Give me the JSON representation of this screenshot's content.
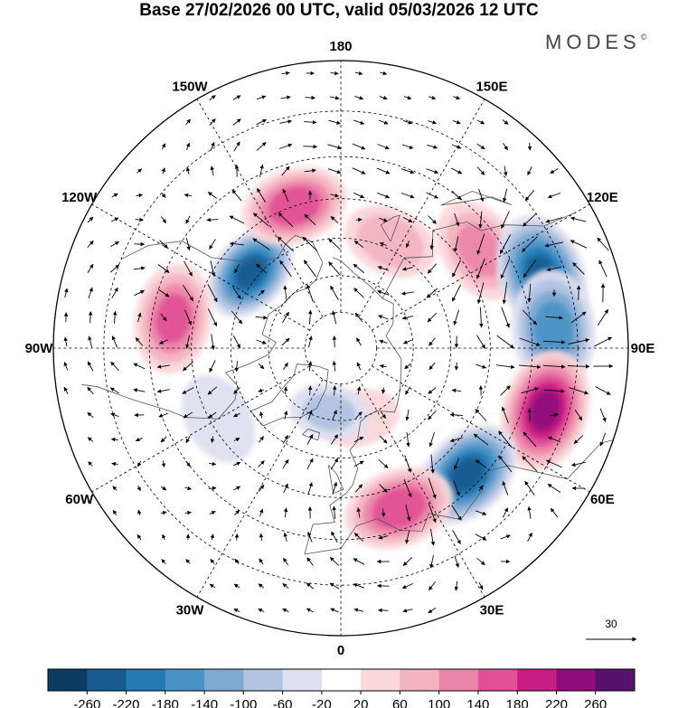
{
  "header": {
    "title": "Base 27/02/2026 00 UTC, valid 05/03/2026 12 UTC",
    "brand": "MODES",
    "brand_mark": "©"
  },
  "chart_data": {
    "type": "heatmap",
    "projection": "north-polar-stereographic",
    "title": "Base 27/02/2026 00 UTC, valid 05/03/2026 12 UTC",
    "longitude_labels": [
      {
        "lon": 180,
        "text": "180"
      },
      {
        "lon": 150,
        "text": "150E"
      },
      {
        "lon": 120,
        "text": "120E"
      },
      {
        "lon": 90,
        "text": "90E"
      },
      {
        "lon": 60,
        "text": "60E"
      },
      {
        "lon": 30,
        "text": "30E"
      },
      {
        "lon": 0,
        "text": "0"
      },
      {
        "lon": -30,
        "text": "30W"
      },
      {
        "lon": -60,
        "text": "60W"
      },
      {
        "lon": -90,
        "text": "90W"
      },
      {
        "lon": -120,
        "text": "120W"
      },
      {
        "lon": -150,
        "text": "150W"
      }
    ],
    "latitude_circles": [
      80,
      70,
      60,
      50,
      40,
      30
    ],
    "colorbar": {
      "ticks": [
        "-260",
        "-220",
        "-180",
        "-140",
        "-100",
        "-60",
        "-20",
        "20",
        "60",
        "100",
        "140",
        "180",
        "220",
        "260"
      ],
      "colors": [
        "#0d3c63",
        "#155b90",
        "#2579b3",
        "#4b93c6",
        "#7fa9d3",
        "#b0c3e0",
        "#dedff0",
        "#ffffff",
        "#fad7d9",
        "#f3b4c0",
        "#ec86aa",
        "#e05196",
        "#c81d84",
        "#8e0d7a",
        "#55116c"
      ]
    },
    "anomaly_centers": [
      {
        "lon": -130,
        "lat": 58,
        "value": -250
      },
      {
        "lon": -162,
        "lat": 50,
        "value": 190
      },
      {
        "lon": -100,
        "lat": 45,
        "value": 170
      },
      {
        "lon": -60,
        "lat": 52,
        "value": -60
      },
      {
        "lon": 155,
        "lat": 58,
        "value": 110
      },
      {
        "lon": 125,
        "lat": 45,
        "value": 130
      },
      {
        "lon": 110,
        "lat": 35,
        "value": -240
      },
      {
        "lon": 95,
        "lat": 35,
        "value": -180
      },
      {
        "lon": 73,
        "lat": 35,
        "value": 250
      },
      {
        "lon": 45,
        "lat": 43,
        "value": -250
      },
      {
        "lon": 20,
        "lat": 45,
        "value": 190
      },
      {
        "lon": 15,
        "lat": 70,
        "value": 70
      },
      {
        "lon": -10,
        "lat": 72,
        "value": -80
      }
    ],
    "wind_reference": {
      "value": 30,
      "text": "30"
    }
  }
}
